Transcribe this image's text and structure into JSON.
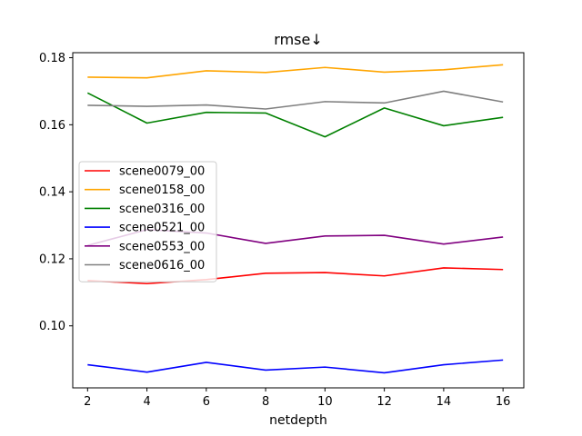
{
  "chart_data": {
    "type": "line",
    "title": "rmse↓",
    "xlabel": "netdepth",
    "ylabel": "",
    "x": [
      2,
      4,
      6,
      8,
      10,
      12,
      14,
      16
    ],
    "xlim": [
      1.5,
      16.7
    ],
    "ylim": [
      0.0815,
      0.1815
    ],
    "xticks": [
      "2",
      "4",
      "6",
      "8",
      "10",
      "12",
      "14",
      "16"
    ],
    "yticks": [
      "0.10",
      "0.12",
      "0.14",
      "0.16",
      "0.18"
    ],
    "ytick_values": [
      0.1,
      0.12,
      0.14,
      0.16,
      0.18
    ],
    "grid": false,
    "legend_position": "center-left",
    "series": [
      {
        "name": "scene0079_00",
        "color": "#ff0000",
        "values": [
          0.1135,
          0.1126,
          0.1138,
          0.1157,
          0.1159,
          0.1149,
          0.1173,
          0.1168
        ]
      },
      {
        "name": "scene0158_00",
        "color": "#ffa500",
        "values": [
          0.1742,
          0.174,
          0.1761,
          0.1756,
          0.1771,
          0.1757,
          0.1764,
          0.1779
        ]
      },
      {
        "name": "scene0316_00",
        "color": "#008000",
        "values": [
          0.1695,
          0.1605,
          0.1637,
          0.1635,
          0.1564,
          0.165,
          0.1597,
          0.1622
        ]
      },
      {
        "name": "scene0521_00",
        "color": "#0000ff",
        "values": [
          0.0884,
          0.0862,
          0.0891,
          0.0868,
          0.0877,
          0.086,
          0.0884,
          0.0898
        ]
      },
      {
        "name": "scene0553_00",
        "color": "#800080",
        "values": [
          0.124,
          0.1287,
          0.1277,
          0.1246,
          0.1268,
          0.127,
          0.1244,
          0.1265
        ]
      },
      {
        "name": "scene0616_00",
        "color": "#808080",
        "values": [
          0.1658,
          0.1655,
          0.1659,
          0.1647,
          0.1669,
          0.1665,
          0.17,
          0.1668
        ]
      }
    ]
  }
}
